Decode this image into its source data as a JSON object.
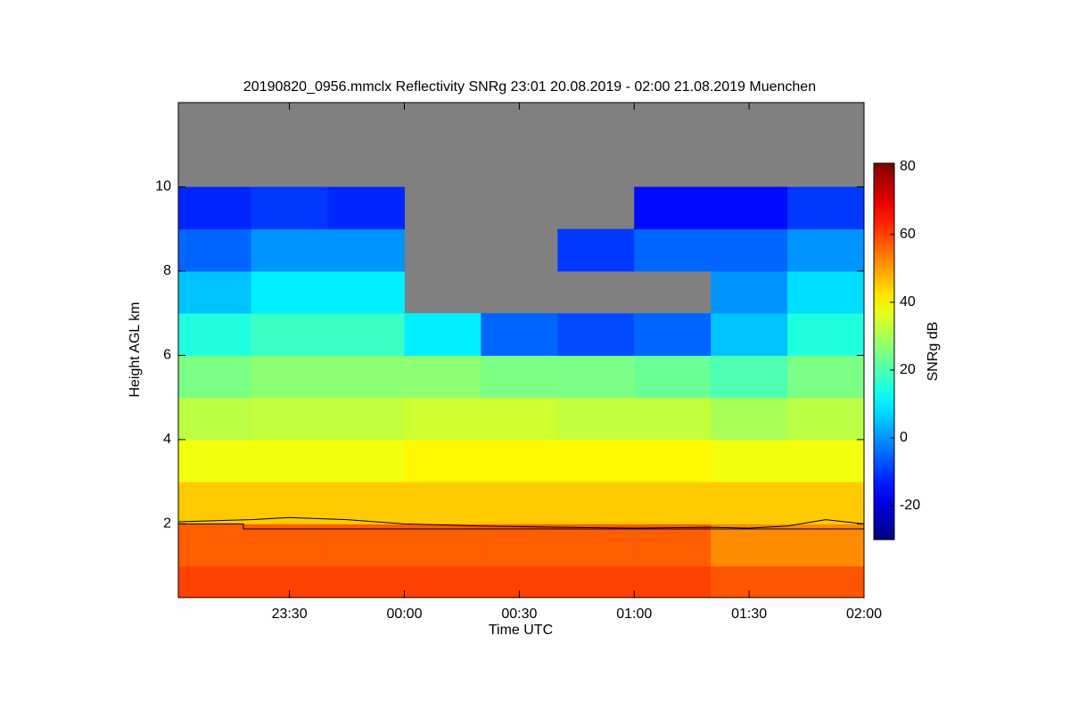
{
  "chart_data": {
    "type": "heatmap",
    "title": "20190820_0956.mmclx Reflectivity SNRg   23:01 20.08.2019 - 02:00 21.08.2019 Muenchen",
    "x_label": "Time UTC",
    "y_label": "Height AGL km",
    "colorbar_label": "SNRg dB",
    "colormap": "jet",
    "missing_color": "#808080",
    "xlim": [
      1,
      180
    ],
    "xticks": [
      {
        "value": 30,
        "label": "23:30"
      },
      {
        "value": 60,
        "label": "00:00"
      },
      {
        "value": 90,
        "label": "00:30"
      },
      {
        "value": 120,
        "label": "01:00"
      },
      {
        "value": 150,
        "label": "01:30"
      },
      {
        "value": 180,
        "label": "02:00"
      }
    ],
    "ylim": [
      0.25,
      12
    ],
    "yticks": [
      2,
      4,
      6,
      8,
      10
    ],
    "clim": [
      -30,
      81
    ],
    "cticks": [
      -20,
      0,
      20,
      40,
      60,
      80
    ],
    "x_bins": [
      1,
      20,
      40,
      60,
      80,
      100,
      120,
      140,
      160,
      180
    ],
    "y_bins": [
      0.25,
      1,
      2,
      3,
      4,
      5,
      6,
      7,
      8,
      9,
      10,
      11,
      12
    ],
    "z": [
      [
        60,
        57,
        45,
        38,
        32,
        25,
        15,
        5,
        -5,
        -12,
        null,
        null
      ],
      [
        60,
        57,
        45,
        38,
        33,
        27,
        18,
        10,
        0,
        -10,
        null,
        null
      ],
      [
        60,
        57,
        45,
        38,
        33,
        27,
        18,
        10,
        0,
        -12,
        null,
        null
      ],
      [
        60,
        57,
        45,
        40,
        34,
        27,
        10,
        null,
        null,
        null,
        null,
        null
      ],
      [
        60,
        57,
        45,
        40,
        34,
        25,
        -5,
        null,
        null,
        null,
        null,
        null
      ],
      [
        60,
        57,
        45,
        40,
        33,
        25,
        -8,
        null,
        -10,
        null,
        null,
        null
      ],
      [
        60,
        57,
        45,
        40,
        33,
        23,
        -5,
        null,
        -5,
        -15,
        null,
        null
      ],
      [
        58,
        52,
        45,
        38,
        30,
        20,
        5,
        0,
        -5,
        -15,
        null,
        null
      ],
      [
        58,
        52,
        45,
        38,
        32,
        25,
        15,
        8,
        0,
        -10,
        null,
        null
      ]
    ],
    "lines": [
      {
        "color": "#000000",
        "x": [
          1,
          20,
          30,
          45,
          60,
          80,
          100,
          120,
          140,
          150,
          160,
          170,
          180
        ],
        "y": [
          2.05,
          2.1,
          2.15,
          2.1,
          2.0,
          1.95,
          1.92,
          1.9,
          1.92,
          1.9,
          1.95,
          2.1,
          2.0
        ]
      },
      {
        "color": "#000000",
        "x": [
          1,
          18,
          18,
          180
        ],
        "y": [
          2.0,
          2.0,
          1.88,
          1.88
        ]
      }
    ]
  }
}
